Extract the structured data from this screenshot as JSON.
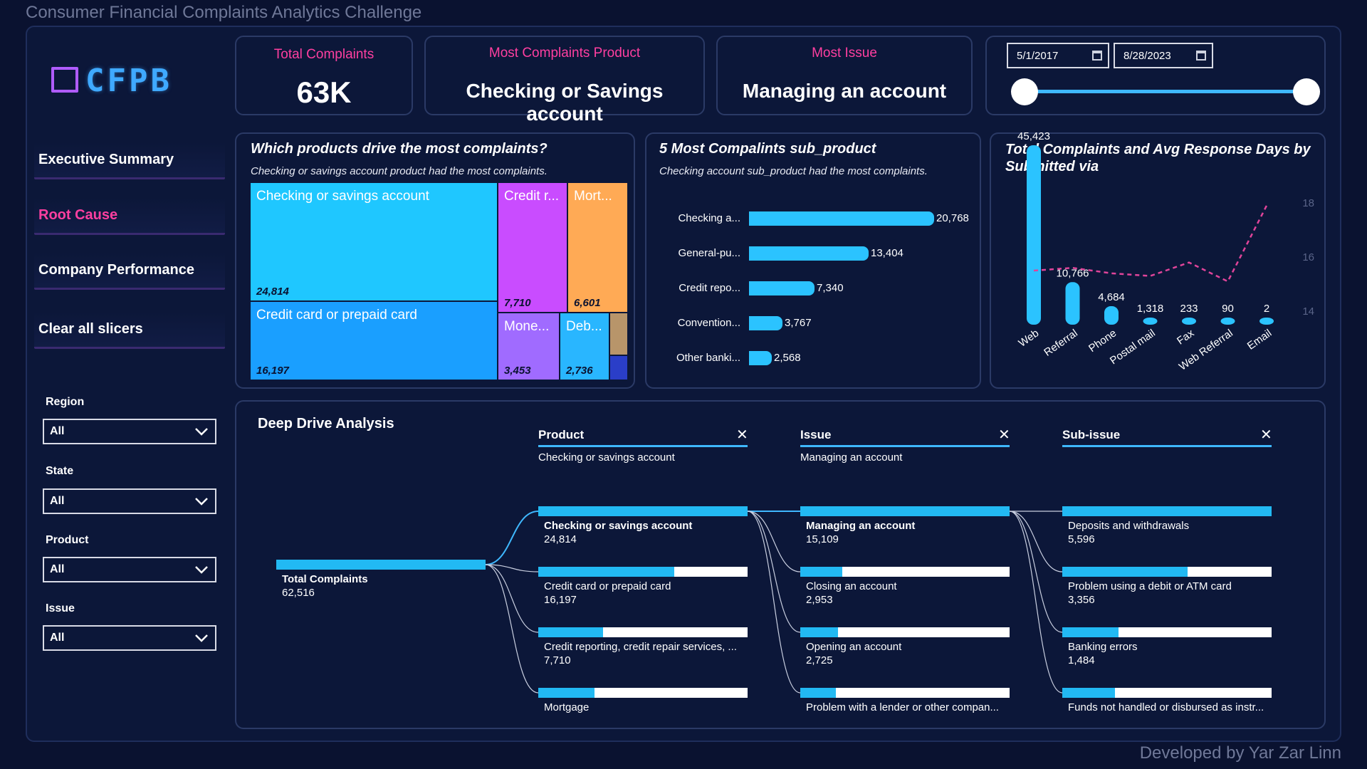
{
  "page_title": "Consumer Financial Complaints Analytics Challenge",
  "footer": "Developed by Yar Zar Linn",
  "logo": {
    "text": "CFPB",
    "accent": "#3fa9ff"
  },
  "nav": [
    {
      "label": "Executive Summary",
      "active": false
    },
    {
      "label": "Root Cause",
      "active": true
    },
    {
      "label": "Company Performance",
      "active": false
    },
    {
      "label": "Clear all slicers",
      "active": false
    }
  ],
  "slicers": [
    {
      "label": "Region",
      "value": "All"
    },
    {
      "label": "State",
      "value": "All"
    },
    {
      "label": "Product",
      "value": "All"
    },
    {
      "label": "Issue",
      "value": "All"
    }
  ],
  "kpis": {
    "total": {
      "label": "Total Complaints",
      "value": "63K"
    },
    "product": {
      "label": "Most Complaints Product",
      "value": "Checking or Savings account"
    },
    "issue": {
      "label": "Most Issue",
      "value": "Managing an account"
    }
  },
  "date_range": {
    "start": "5/1/2017",
    "end": "8/28/2023",
    "start_fraction": 0,
    "end_fraction": 1
  },
  "treemap": {
    "title": "Which products drive the most complaints?",
    "subtitle": "Checking or savings account product had the most complaints.",
    "items": [
      {
        "label": "Checking or savings account",
        "value": "24,814",
        "color": "#1fc7ff"
      },
      {
        "label": "Credit card or prepaid card",
        "value": "16,197",
        "color": "#1a9fff"
      },
      {
        "label": "Credit r...",
        "value": "7,710",
        "color": "#c94cff"
      },
      {
        "label": "Mort...",
        "value": "6,601",
        "color": "#ffaa55"
      },
      {
        "label": "Mone...",
        "value": "3,453",
        "color": "#a06bff"
      },
      {
        "label": "Deb...",
        "value": "2,736",
        "color": "#29b6ff"
      }
    ]
  },
  "bar_chart": {
    "title": "5 Most Compalints sub_product",
    "subtitle": "Checking account sub_product had the most complaints.",
    "chart_data": {
      "type": "bar",
      "categories": [
        "Checking a...",
        "General-pu...",
        "Credit repo...",
        "Convention...",
        "Other banki..."
      ],
      "values": [
        20768,
        13404,
        7340,
        3767,
        2568
      ],
      "labels": [
        "20,768",
        "13,404",
        "7,340",
        "3,767",
        "2,568"
      ]
    }
  },
  "combo_chart": {
    "title": "Total Complaints and Avg Response Days by Submitted via",
    "chart_data": {
      "type": "bar",
      "categories": [
        "Web",
        "Referral",
        "Phone",
        "Postal mail",
        "Fax",
        "Web Referral",
        "Email"
      ],
      "values": [
        45423,
        10766,
        4684,
        1318,
        233,
        90,
        2
      ],
      "labels": [
        "45,423",
        "10,766",
        "4,684",
        "1,318",
        "233",
        "90",
        "2"
      ],
      "line_series": {
        "values": [
          15.5,
          15.6,
          15.4,
          15.3,
          15.8,
          15.1,
          17.9
        ]
      },
      "y2_ticks": [
        "18",
        "16",
        "14"
      ],
      "y2_range": [
        13.5,
        18.5
      ]
    }
  },
  "decomp": {
    "title": "Deep Drive Analysis",
    "columns": [
      {
        "head": "Product",
        "selected": "Checking or savings account"
      },
      {
        "head": "Issue",
        "selected": "Managing an account"
      },
      {
        "head": "Sub-issue",
        "selected": ""
      }
    ],
    "root": {
      "label": "Total Complaints",
      "value": "62,516"
    },
    "product": [
      {
        "label": "Checking or savings account",
        "value": "24,814",
        "fill": 1.0
      },
      {
        "label": "Credit card or prepaid card",
        "value": "16,197",
        "fill": 0.65
      },
      {
        "label": "Credit reporting, credit repair services, ...",
        "value": "7,710",
        "fill": 0.31
      },
      {
        "label": "Mortgage",
        "value": "",
        "fill": 0.27
      }
    ],
    "issue": [
      {
        "label": "Managing an account",
        "value": "15,109",
        "fill": 1.0
      },
      {
        "label": "Closing an account",
        "value": "2,953",
        "fill": 0.2
      },
      {
        "label": "Opening an account",
        "value": "2,725",
        "fill": 0.18
      },
      {
        "label": "Problem with a lender or other compan...",
        "value": "",
        "fill": 0.17
      }
    ],
    "subissue": [
      {
        "label": "Deposits and withdrawals",
        "value": "5,596",
        "fill": 1.0
      },
      {
        "label": "Problem using a debit or ATM card",
        "value": "3,356",
        "fill": 0.6
      },
      {
        "label": "Banking errors",
        "value": "1,484",
        "fill": 0.27
      },
      {
        "label": "Funds not handled or disbursed as instr...",
        "value": "",
        "fill": 0.25
      }
    ]
  }
}
